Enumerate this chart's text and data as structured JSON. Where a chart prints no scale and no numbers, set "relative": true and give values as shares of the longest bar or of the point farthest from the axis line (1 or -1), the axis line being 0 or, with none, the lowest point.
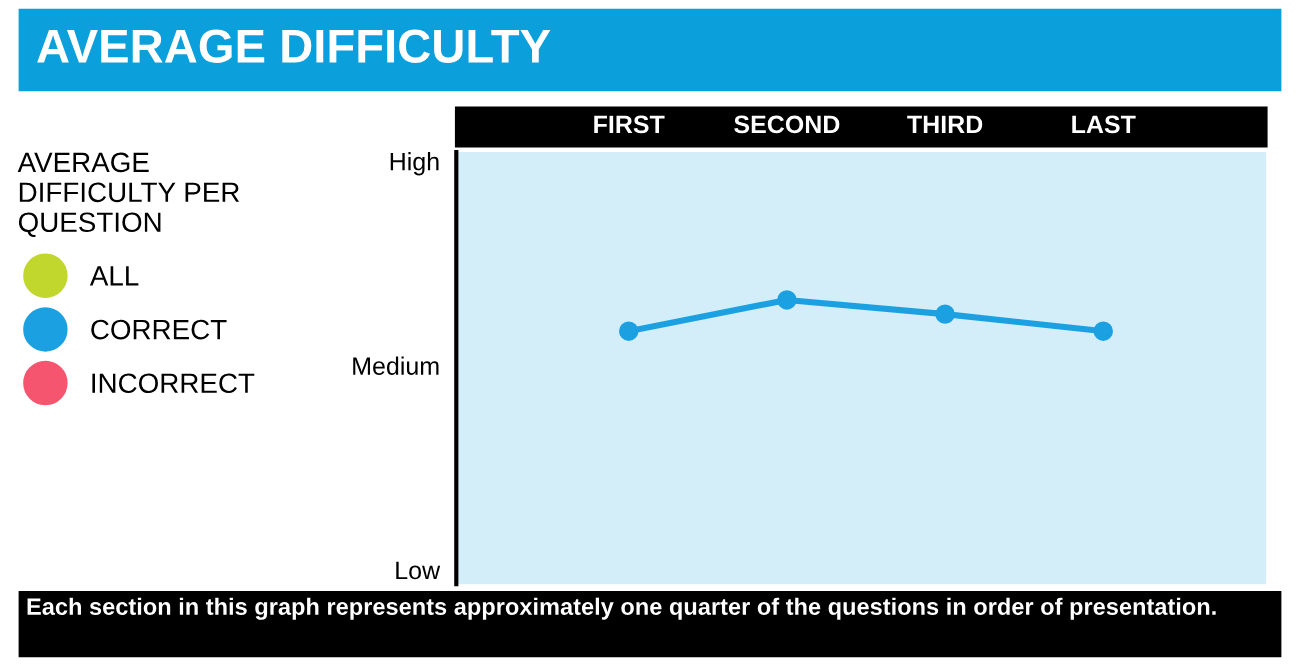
{
  "chart_data": {
    "type": "line",
    "title": "AVERAGE DIFFICULTY",
    "categories": [
      "FIRST",
      "SECOND",
      "THIRD",
      "LAST"
    ],
    "relative": true,
    "series": [
      {
        "name": "ALL",
        "color": "#c1d72e",
        "values": [
          null,
          null,
          null,
          null
        ]
      },
      {
        "name": "CORRECT",
        "color": "#1ba1e2",
        "values": [
          0.89,
          1,
          0.95,
          0.89
        ]
      },
      {
        "name": "INCORRECT",
        "color": "#f5556e",
        "values": [
          null,
          null,
          null,
          null
        ]
      }
    ],
    "legend_title": "AVERAGE\nDIFFICULTY PER\nQUESTION",
    "legend": "left",
    "grid": false,
    "marker": "circle",
    "line_style": "solid",
    "annotations": [
      "Each section in this graph represents approximately one quarter of the questions in order of presentation.",
      "High",
      "Medium",
      "Low"
    ]
  }
}
